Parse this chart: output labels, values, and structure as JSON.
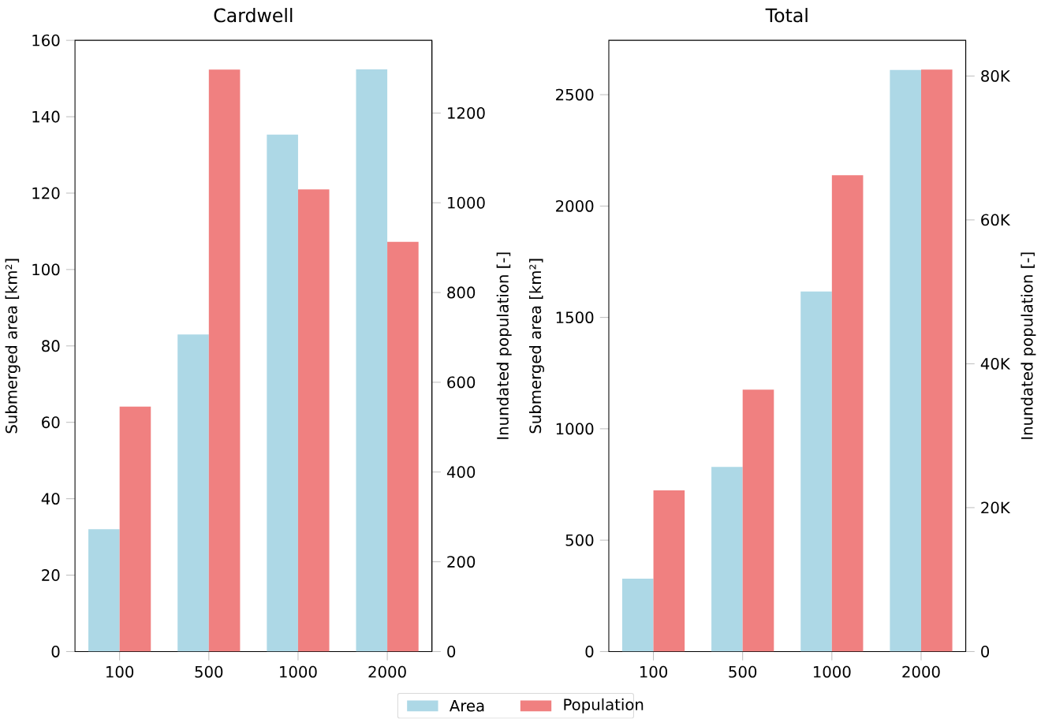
{
  "chart_data": [
    {
      "type": "bar",
      "title": "Cardwell",
      "categories": [
        "100",
        "500",
        "1000",
        "2000"
      ],
      "ylabel": "Submerged area [km²]",
      "y2label": "Inundated population [-]",
      "ylim": [
        0,
        160
      ],
      "yticks": [
        0,
        20,
        40,
        60,
        80,
        100,
        120,
        140,
        160
      ],
      "y2lim": [
        0,
        1362
      ],
      "y2ticks": [
        0,
        200,
        400,
        600,
        800,
        1000,
        1200
      ],
      "legend": "bottom",
      "series": [
        {
          "name": "Area",
          "color": "#add8e6",
          "values": [
            32,
            83,
            135.3,
            152.4
          ]
        },
        {
          "name": "Population",
          "color": "#f08080",
          "axis": "y2",
          "values": [
            546,
            1297,
            1030,
            913
          ]
        }
      ]
    },
    {
      "type": "bar",
      "title": "Total",
      "categories": [
        "100",
        "500",
        "1000",
        "2000"
      ],
      "ylabel": "Submerged area [km²]",
      "y2label": "Inundated population [-]",
      "ylim": [
        0,
        2744
      ],
      "yticks": [
        0,
        500,
        1000,
        1500,
        2000,
        2500
      ],
      "y2lim": [
        0,
        84960
      ],
      "y2ticks": [
        0,
        {
          "value": 20000,
          "label": "20K"
        },
        {
          "value": 40000,
          "label": "40K"
        },
        {
          "value": 60000,
          "label": "60K"
        },
        {
          "value": 80000,
          "label": "80K"
        }
      ],
      "series": [
        {
          "color": "#add8e6",
          "values": [
            327,
            829,
            1616,
            2611
          ]
        },
        {
          "color": "#f08080",
          "axis": "y2",
          "values": [
            22400,
            36400,
            66200,
            80900
          ]
        }
      ]
    }
  ]
}
